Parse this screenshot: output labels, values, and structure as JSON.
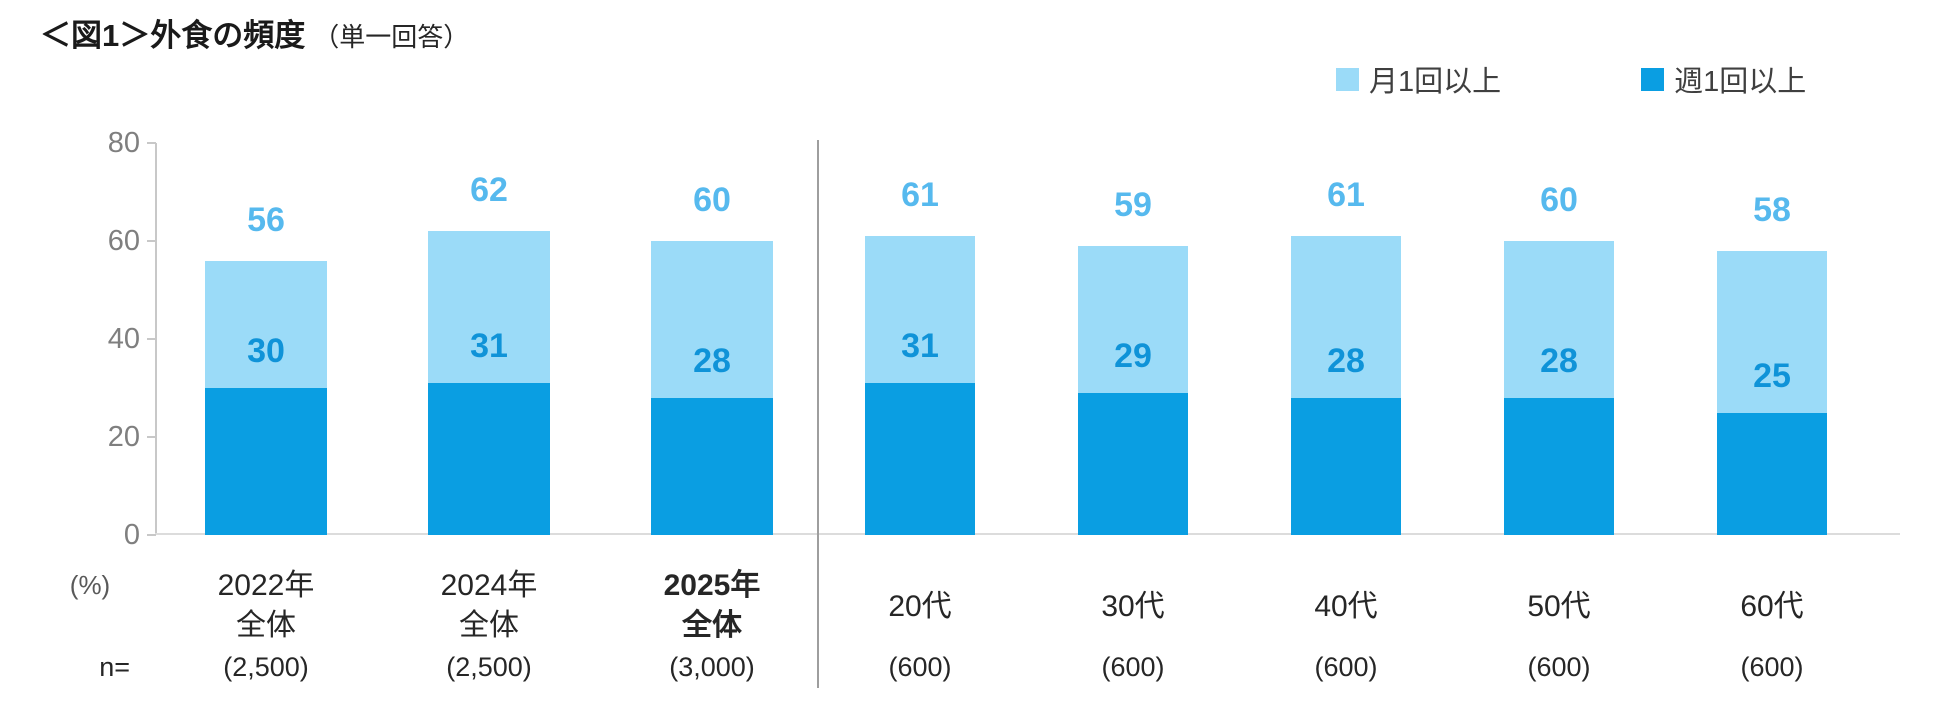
{
  "title": {
    "main": "＜図1＞外食の頻度",
    "sub": "（単一回答）"
  },
  "legend": [
    {
      "label": "月1回以上",
      "color": "#9bdbf8"
    },
    {
      "label": "週1回以上",
      "color": "#0a9ee2"
    }
  ],
  "axis": {
    "unit_label": "(%)",
    "n_label": "n=",
    "ticks": [
      0,
      20,
      40,
      60,
      80
    ],
    "max": 80
  },
  "chart_data": {
    "type": "bar",
    "stacked": true,
    "values_are_cumulative": true,
    "title": "＜図1＞外食の頻度（単一回答）",
    "ylabel": "(%)",
    "ylim": [
      0,
      80
    ],
    "grid": false,
    "legend_position": "top-right",
    "categories": [
      {
        "label": "2022年",
        "label2": "全体",
        "n": "(2,500)",
        "bold": false,
        "group": "total"
      },
      {
        "label": "2024年",
        "label2": "全体",
        "n": "(2,500)",
        "bold": false,
        "group": "total"
      },
      {
        "label": "2025年",
        "label2": "全体",
        "n": "(3,000)",
        "bold": true,
        "group": "total"
      },
      {
        "label": "20代",
        "label2": "",
        "n": "(600)",
        "bold": false,
        "group": "age"
      },
      {
        "label": "30代",
        "label2": "",
        "n": "(600)",
        "bold": false,
        "group": "age"
      },
      {
        "label": "40代",
        "label2": "",
        "n": "(600)",
        "bold": false,
        "group": "age"
      },
      {
        "label": "50代",
        "label2": "",
        "n": "(600)",
        "bold": false,
        "group": "age"
      },
      {
        "label": "60代",
        "label2": "",
        "n": "(600)",
        "bold": false,
        "group": "age"
      }
    ],
    "series": [
      {
        "name": "月1回以上",
        "values": [
          56,
          62,
          60,
          61,
          59,
          61,
          60,
          58
        ],
        "color": "#9bdbf8",
        "label_color": "#56b9ee"
      },
      {
        "name": "週1回以上",
        "values": [
          30,
          31,
          28,
          31,
          29,
          28,
          28,
          25
        ],
        "color": "#0a9ee2",
        "label_color": "#0f93d8"
      }
    ]
  }
}
